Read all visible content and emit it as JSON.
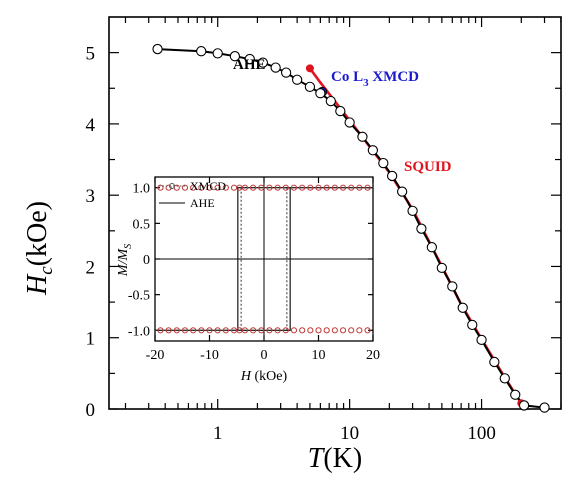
{
  "chart_data": [
    {
      "type": "line",
      "xlabel": "T(K)",
      "xlabel_main": "T",
      "xlabel_unit": "(K)",
      "ylabel": "Hc(kOe)",
      "ylabel_main": "H",
      "ylabel_sub": "c",
      "ylabel_unit": "(kOe)",
      "xscale": "log",
      "xlim": [
        0.15,
        400
      ],
      "ylim": [
        0,
        5.5
      ],
      "x_ticks": [
        1,
        10,
        100
      ],
      "x_tick_labels": [
        "1",
        "10",
        "100"
      ],
      "y_ticks": [
        0,
        1,
        2,
        3,
        4,
        5
      ],
      "y_tick_labels": [
        "0",
        "1",
        "2",
        "3",
        "4",
        "5"
      ],
      "annotations": [
        {
          "text": "AHE",
          "color": "#000000"
        },
        {
          "text": "Co L3 XMCD",
          "color": "#1a1acc",
          "main": "Co L",
          "sub": "3",
          "rest": " XMCD"
        },
        {
          "text": "SQUID",
          "color": "#e0141e"
        }
      ],
      "series": [
        {
          "name": "AHE",
          "style": "open-circle-line",
          "color": "#000000",
          "x": [
            0.35,
            0.75,
            1.0,
            1.35,
            1.75,
            2.2,
            2.75,
            3.3,
            4.0,
            5.0,
            6.0,
            7.2,
            8.5,
            10,
            12.5,
            15,
            18,
            21,
            25,
            30,
            35,
            42,
            50,
            60,
            72,
            85,
            100,
            125,
            150,
            180,
            210,
            300
          ],
          "y": [
            5.05,
            5.02,
            4.99,
            4.95,
            4.91,
            4.86,
            4.79,
            4.72,
            4.62,
            4.52,
            4.43,
            4.32,
            4.18,
            4.02,
            3.82,
            3.63,
            3.45,
            3.27,
            3.05,
            2.78,
            2.53,
            2.27,
            1.98,
            1.72,
            1.42,
            1.18,
            0.97,
            0.66,
            0.43,
            0.2,
            0.05,
            0.02
          ]
        },
        {
          "name": "SQUID",
          "style": "line",
          "color": "#e0141e",
          "x": [
            5.0,
            6.0,
            7.5,
            10,
            15,
            20,
            30,
            50,
            70,
            100,
            150,
            200
          ],
          "y": [
            4.78,
            4.58,
            4.35,
            4.05,
            3.62,
            3.32,
            2.8,
            2.0,
            1.47,
            0.98,
            0.44,
            0.08
          ]
        },
        {
          "name": "Co L3 XMCD",
          "style": "filled-circle",
          "color": "#1a1acc",
          "x": [
            6.2
          ],
          "y": [
            4.45
          ]
        }
      ],
      "extra_points": [
        {
          "x": 5.0,
          "y": 4.78,
          "color": "#e0141e"
        },
        {
          "x": 6.0,
          "y": 4.43,
          "color": "#e8c000"
        },
        {
          "x": 200,
          "y": 0.08,
          "color": "#e0141e"
        }
      ]
    },
    {
      "type": "line",
      "role": "inset",
      "xlabel": "H (kOe)",
      "xlabel_main": "H",
      "xlabel_unit": " (kOe)",
      "ylabel": "M/Ms",
      "ylabel_main": "M/M",
      "ylabel_sub": "S",
      "xlim": [
        -20,
        20
      ],
      "ylim": [
        -1.15,
        1.15
      ],
      "x_ticks": [
        -20,
        -10,
        0,
        10,
        20
      ],
      "x_tick_labels": [
        "-20",
        "-10",
        "0",
        "10",
        "20"
      ],
      "y_ticks": [
        -1.0,
        -0.5,
        0,
        0.5,
        1.0
      ],
      "y_tick_labels": [
        "-1.0",
        "-0.5",
        "0",
        "0.5",
        "1.0"
      ],
      "legend": [
        {
          "label": "XMCD",
          "style": "dotted-open-circle"
        },
        {
          "label": "AHE",
          "style": "solid"
        }
      ],
      "coercive_field_ahe": 4.8,
      "coercive_field_xmcd": 4.2,
      "xmcd_points_x": [
        -19,
        -17.5,
        -16,
        -14.5,
        -13,
        -11.5,
        -10,
        -8.5,
        -7,
        -5.5,
        -4.5,
        -3.5,
        -2,
        -0.5,
        1,
        2.5,
        4,
        5.5,
        7,
        8.5,
        10,
        11.5,
        13,
        14.5,
        16,
        17.5,
        19
      ]
    }
  ]
}
